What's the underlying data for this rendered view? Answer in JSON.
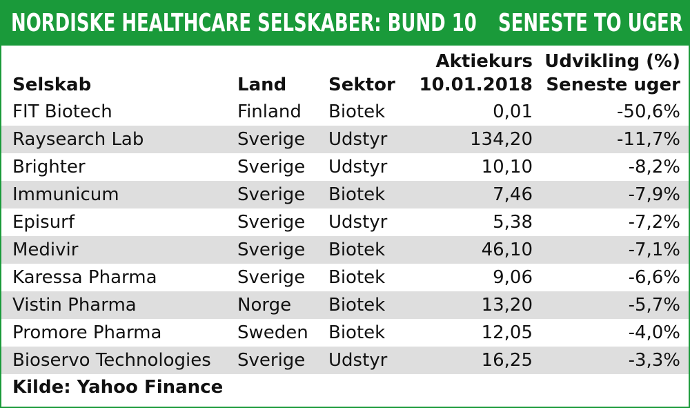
{
  "banner": {
    "title": "NORDISKE HEALTHCARE SELSKABER: BUND 10",
    "period": "SENESTE TO UGER"
  },
  "colors": {
    "brand_green": "#1a9a3a",
    "row_shade": "#dedede"
  },
  "table": {
    "headers": {
      "company": "Selskab",
      "country": "Land",
      "sector": "Sektor",
      "price_line1": "Aktiekurs",
      "price_line2": "10.01.2018",
      "change_line1": "Udvikling (%)",
      "change_line2": "Seneste uger"
    },
    "rows": [
      {
        "company": "FIT Biotech",
        "country": "Finland",
        "sector": "Biotek",
        "price": "0,01",
        "change": "-50,6%"
      },
      {
        "company": "Raysearch Lab",
        "country": "Sverige",
        "sector": "Udstyr",
        "price": "134,20",
        "change": "-11,7%"
      },
      {
        "company": "Brighter",
        "country": "Sverige",
        "sector": "Udstyr",
        "price": "10,10",
        "change": "-8,2%"
      },
      {
        "company": "Immunicum",
        "country": "Sverige",
        "sector": "Biotek",
        "price": "7,46",
        "change": "-7,9%"
      },
      {
        "company": "Episurf",
        "country": "Sverige",
        "sector": "Udstyr",
        "price": "5,38",
        "change": "-7,2%"
      },
      {
        "company": "Medivir",
        "country": "Sverige",
        "sector": "Biotek",
        "price": "46,10",
        "change": "-7,1%"
      },
      {
        "company": "Karessa Pharma",
        "country": "Sverige",
        "sector": "Biotek",
        "price": "9,06",
        "change": "-6,6%"
      },
      {
        "company": "Vistin Pharma",
        "country": "Norge",
        "sector": "Biotek",
        "price": "13,20",
        "change": "-5,7%"
      },
      {
        "company": "Promore Pharma",
        "country": "Sweden",
        "sector": "Biotek",
        "price": "12,05",
        "change": "-4,0%"
      },
      {
        "company": "Bioservo Technologies",
        "country": "Sverige",
        "sector": "Udstyr",
        "price": "16,25",
        "change": "-3,3%"
      }
    ]
  },
  "footer": {
    "source": "Kilde: Yahoo Finance"
  }
}
